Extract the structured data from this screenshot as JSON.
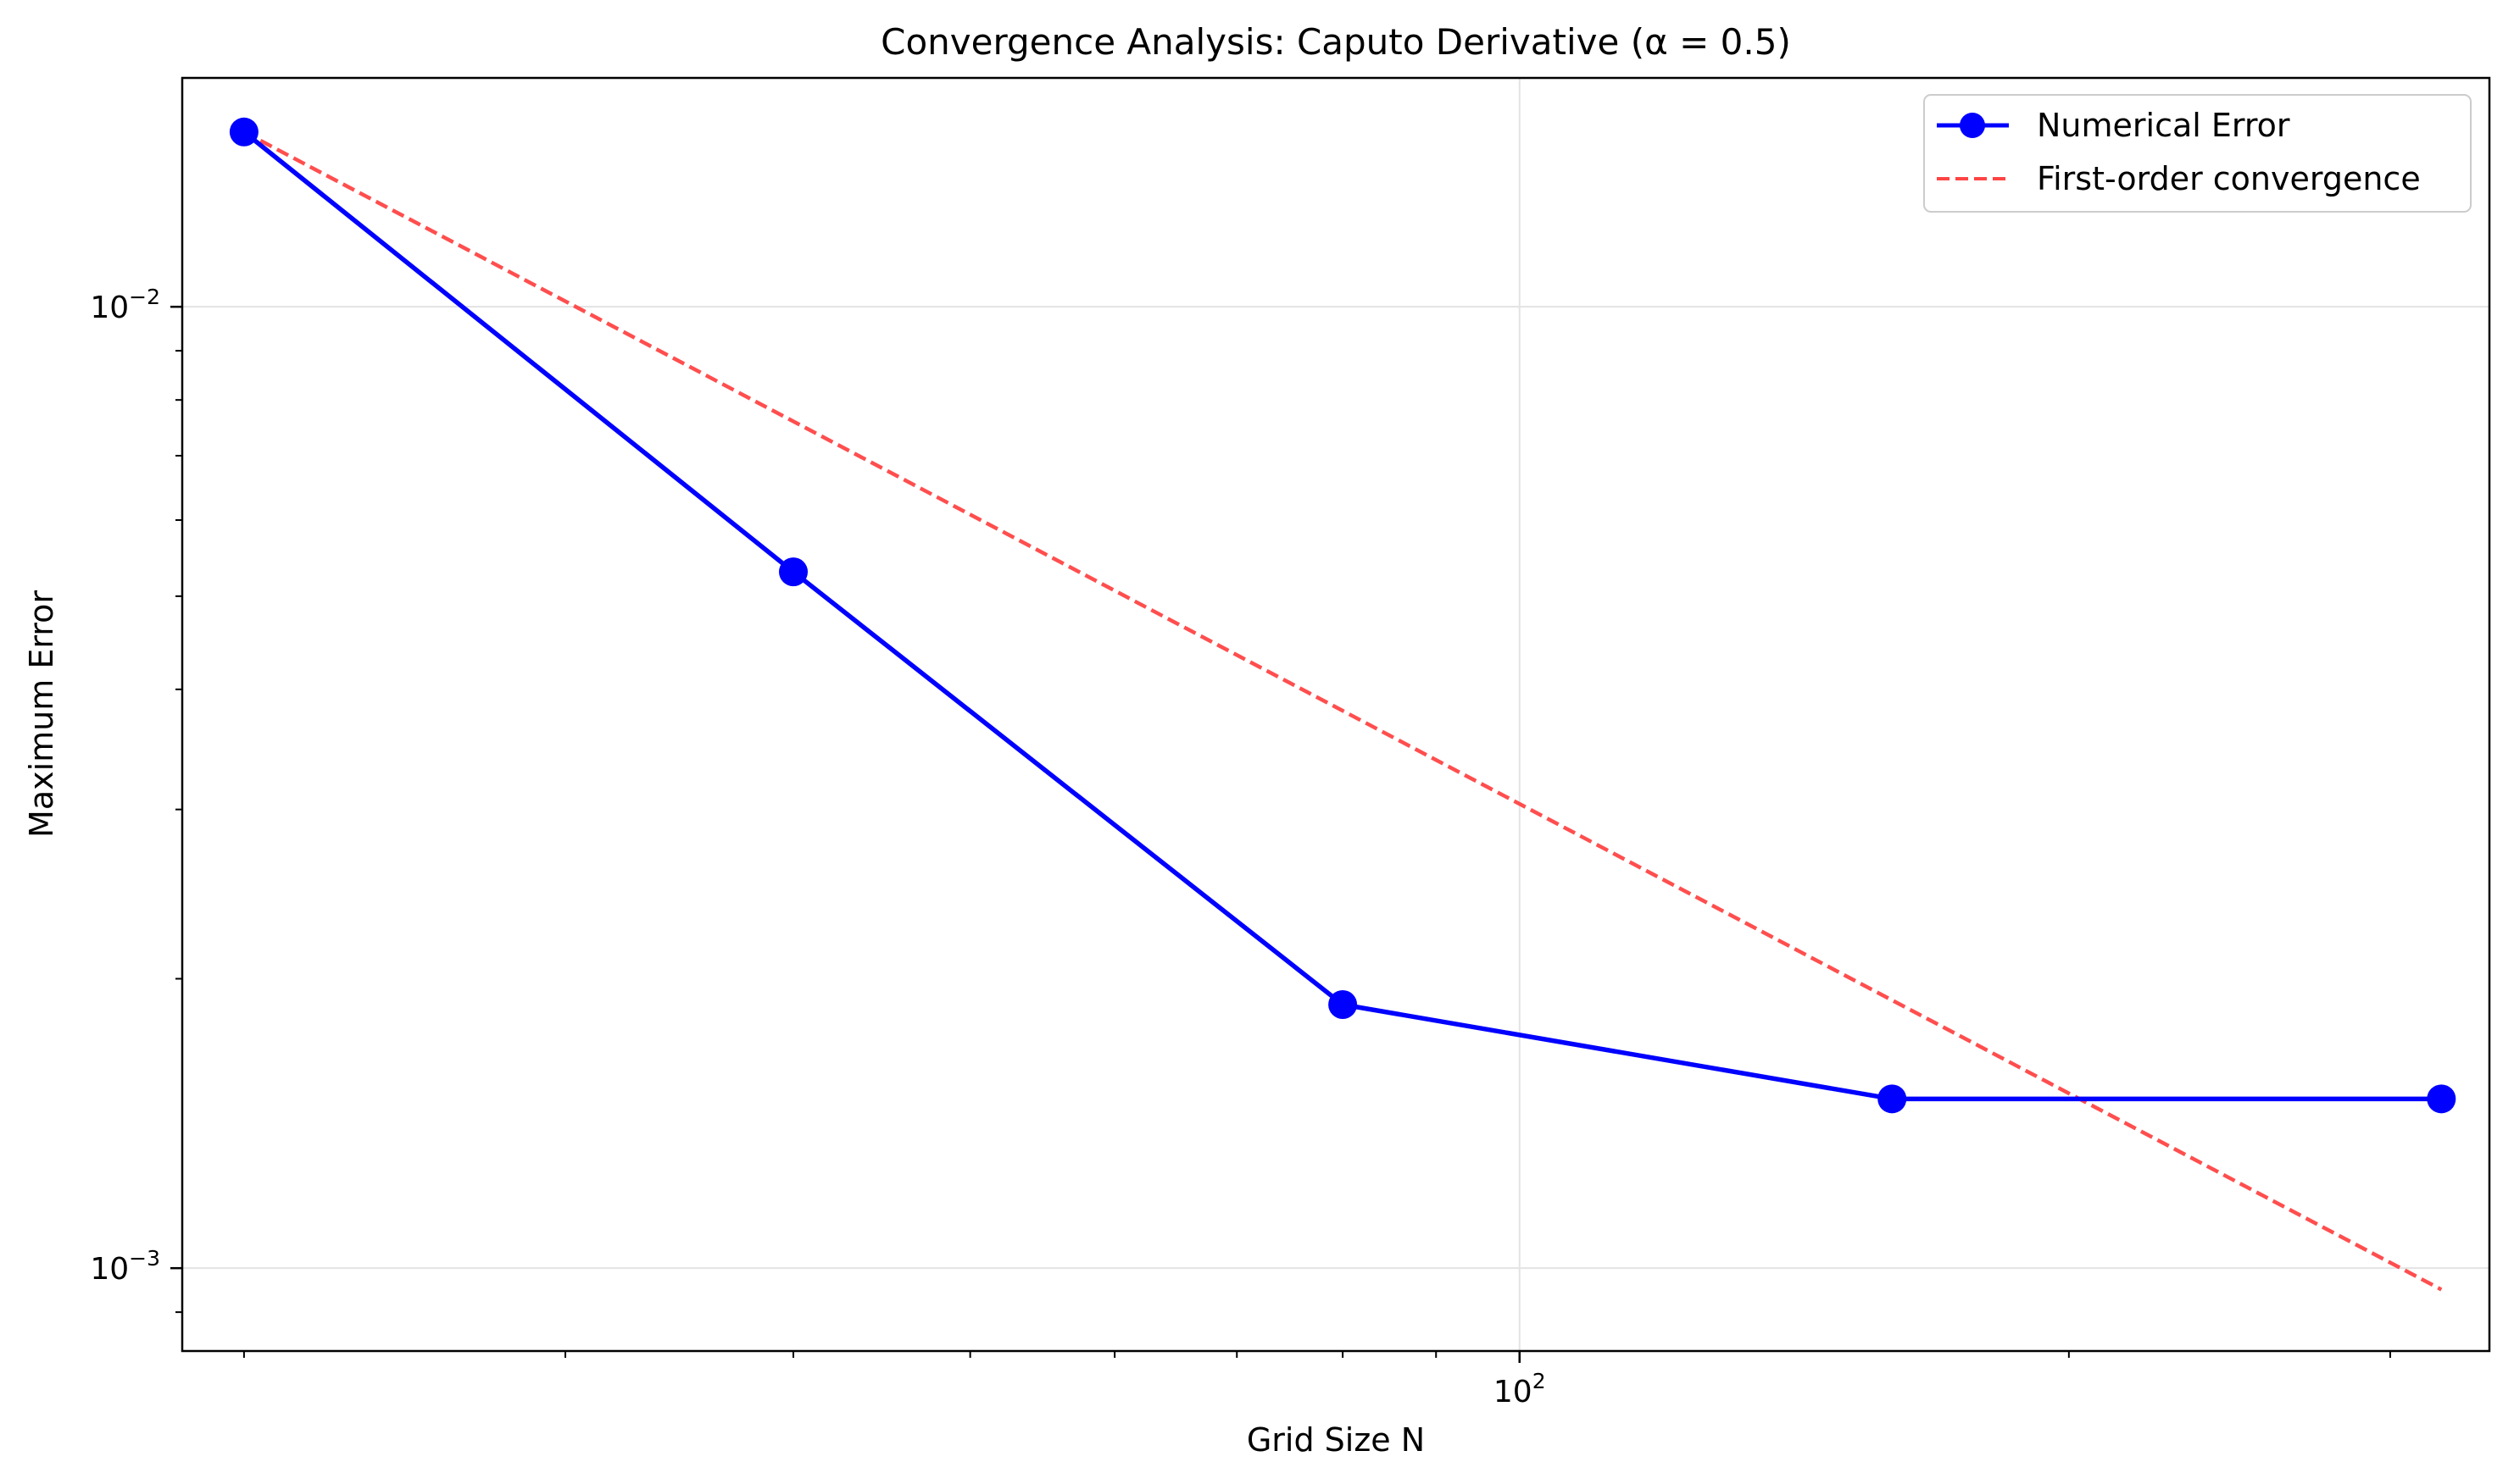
{
  "chart_data": {
    "type": "line",
    "title": "Convergence Analysis: Caputo Derivative (α = 0.5)",
    "xlabel": "Grid Size N",
    "ylabel": "Maximum Error",
    "xscale": "log",
    "yscale": "log",
    "xlim": [
      18.5,
      340
    ],
    "ylim": [
      0.00082,
      0.0173
    ],
    "grid": true,
    "legend_position": "upper right",
    "x_ticks": [
      {
        "value": 100,
        "base": "10",
        "exp": "2"
      }
    ],
    "y_ticks": [
      {
        "value": 0.001,
        "base": "10",
        "exp": "−3"
      },
      {
        "value": 0.01,
        "base": "10",
        "exp": "−2"
      }
    ],
    "series": [
      {
        "name": "Numerical Error",
        "style": "solid-markers",
        "color": "#0000ff",
        "x": [
          20,
          40,
          80,
          160,
          320
        ],
        "y": [
          0.0152,
          0.0053,
          0.00188,
          0.0015,
          0.0015
        ]
      },
      {
        "name": "First-order convergence",
        "style": "dashed",
        "color": "#ff4444",
        "x": [
          20,
          320
        ],
        "y": [
          0.0152,
          0.00095
        ]
      }
    ]
  }
}
